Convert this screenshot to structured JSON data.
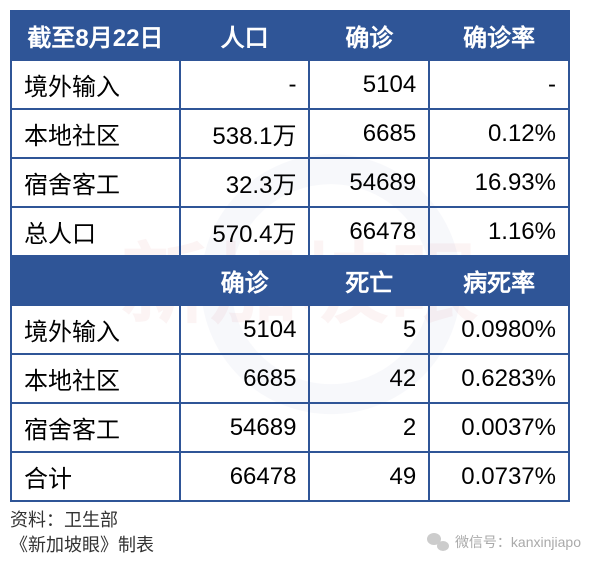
{
  "table1": {
    "headers": [
      "截至8月22日",
      "人口",
      "确诊",
      "确诊率"
    ],
    "rows": [
      {
        "label": "境外输入",
        "pop": "-",
        "cases": "5104",
        "rate": "-"
      },
      {
        "label": "本地社区",
        "pop": "538.1万",
        "cases": "6685",
        "rate": "0.12%"
      },
      {
        "label": "宿舍客工",
        "pop": "32.3万",
        "cases": "54689",
        "rate": "16.93%"
      },
      {
        "label": "总人口",
        "pop": "570.4万",
        "cases": "66478",
        "rate": "1.16%"
      }
    ]
  },
  "table2": {
    "headers": [
      "",
      "确诊",
      "死亡",
      "病死率"
    ],
    "rows": [
      {
        "label": "境外输入",
        "cases": "5104",
        "deaths": "5",
        "rate": "0.0980%"
      },
      {
        "label": "本地社区",
        "cases": "6685",
        "deaths": "42",
        "rate": "0.6283%"
      },
      {
        "label": "宿舍客工",
        "cases": "54689",
        "deaths": "2",
        "rate": "0.0037%"
      },
      {
        "label": "合计",
        "cases": "66478",
        "deaths": "49",
        "rate": "0.0737%"
      }
    ]
  },
  "footer": {
    "line1": "资料：卫生部",
    "line2": "《新加坡眼》制表"
  },
  "wechat": {
    "label": "微信号：kanxinjiapo"
  },
  "watermark": {
    "text": "新加坡眼"
  },
  "style": {
    "header_bg": "#2f5597",
    "header_fg": "#ffffff",
    "border_color": "#2f5597",
    "body_fontsize": 24,
    "footer_fontsize": 18,
    "wechat_color": "#aaaaaa",
    "watermark_color": "rgba(200,40,40,0.07)"
  }
}
